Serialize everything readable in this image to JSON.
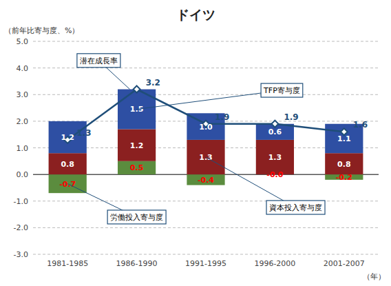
{
  "chart_data": {
    "type": "bar",
    "stacked": true,
    "title": "ドイツ",
    "y_label": "（前年比寄与度、%）",
    "x_label": "（年）",
    "categories": [
      "1981-1985",
      "1986-1990",
      "1991-1995",
      "1996-2000",
      "2001-2007"
    ],
    "series": [
      {
        "name": "労働投入寄与度",
        "color": "#5B8C3E",
        "values": [
          -0.7,
          0.5,
          -0.4,
          0.0,
          -0.2
        ],
        "value_labels": [
          "-0.7",
          "0.5",
          "-0.4",
          "-0.0",
          "-0.2"
        ]
      },
      {
        "name": "資本投入寄与度",
        "color": "#8B2020",
        "values": [
          0.8,
          1.2,
          1.3,
          1.3,
          0.8
        ]
      },
      {
        "name": "TFP寄与度",
        "color": "#2E4FA3",
        "values": [
          1.2,
          1.5,
          1.0,
          0.6,
          1.1
        ],
        "value_labels": [
          "1.2",
          "1.5",
          "1.0",
          "0.6",
          "1.1"
        ]
      },
      {
        "name": "潜在成長率",
        "type": "line",
        "color": "#1F4E79",
        "marker": "diamond",
        "values": [
          1.3,
          3.2,
          1.9,
          1.9,
          1.6
        ]
      }
    ],
    "ylim": [
      -3.0,
      5.0
    ],
    "yticks": [
      {
        "value": -3.0,
        "label": "-3.0"
      },
      {
        "value": -2.0,
        "label": "-2.0"
      },
      {
        "value": -1.0,
        "label": "-1.0"
      },
      {
        "value": 0.0,
        "label": "0.0"
      },
      {
        "value": 1.0,
        "label": "1.0"
      },
      {
        "value": 2.0,
        "label": "2.0"
      },
      {
        "value": 3.0,
        "label": "3.0"
      },
      {
        "value": 4.0,
        "label": "4.0"
      },
      {
        "value": 5.0,
        "label": "5.0"
      }
    ],
    "grid": true,
    "data_labels": true
  }
}
